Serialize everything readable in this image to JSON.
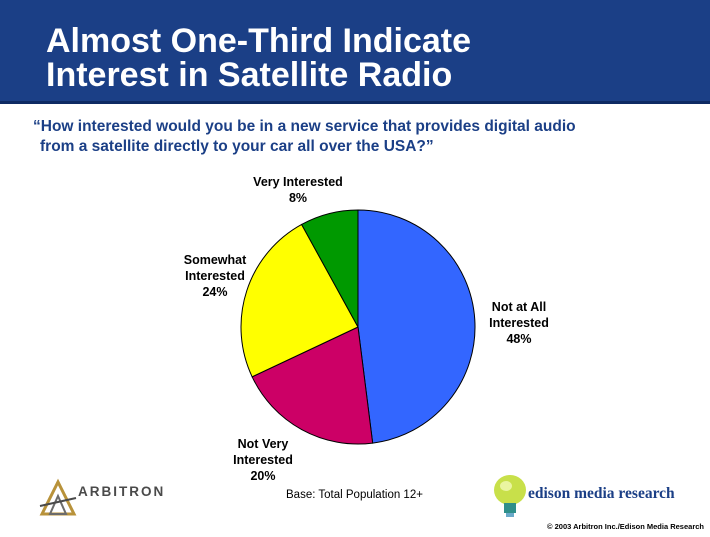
{
  "header": {
    "title_line1": "Almost One-Third Indicate",
    "title_line2": "Interest in Satellite Radio"
  },
  "question": {
    "line1": "“How interested would you be in a new service that provides digital audio",
    "line2": "from a satellite directly to your car all over the USA?”"
  },
  "chart_data": {
    "type": "pie",
    "title": "",
    "slices": [
      {
        "label_lines": [
          "Not at All",
          "Interested"
        ],
        "percent_text": "48%",
        "value": 48,
        "color": "#3366ff"
      },
      {
        "label_lines": [
          "Not Very",
          "Interested"
        ],
        "percent_text": "20%",
        "value": 20,
        "color": "#cc0066"
      },
      {
        "label_lines": [
          "Somewhat",
          "Interested"
        ],
        "percent_text": "24%",
        "value": 24,
        "color": "#ffff00"
      },
      {
        "label_lines": [
          "Very Interested"
        ],
        "percent_text": "8%",
        "value": 8,
        "color": "#009900"
      }
    ]
  },
  "footer": {
    "base_note": "Base: Total Population 12+",
    "arbitron_logo_text": "ARBITRON",
    "edison_logo_text": "edison media research",
    "copyright": "© 2003 Arbitron Inc./Edison Media Research"
  },
  "colors": {
    "header_bg": "#1b3f86",
    "question_text": "#1b3f86"
  }
}
